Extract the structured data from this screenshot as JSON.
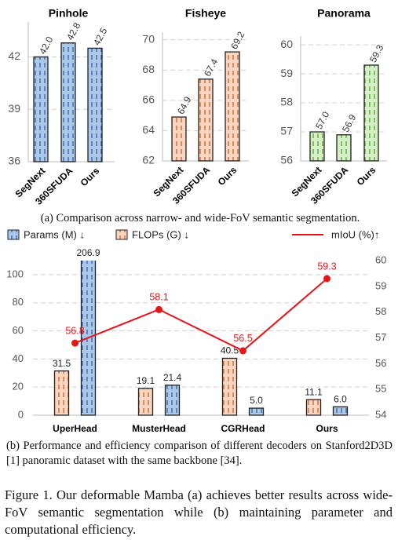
{
  "chart_data": [
    {
      "type": "bar",
      "title": "Pinhole",
      "categories": [
        "SegNext",
        "360SFUDA",
        "Ours"
      ],
      "values": [
        42.0,
        42.8,
        42.5
      ],
      "value_labels": [
        "42.0",
        "42.8",
        "42.5"
      ],
      "color": "#a9c8ea",
      "edge_color": "#2f5597",
      "ylim": [
        36,
        44
      ],
      "yticks": [
        36,
        39,
        42
      ],
      "grid": true
    },
    {
      "type": "bar",
      "title": "Fisheye",
      "categories": [
        "SegNext",
        "360SFUDA",
        "Ours"
      ],
      "values": [
        64.9,
        67.4,
        69.2
      ],
      "value_labels": [
        "64.9",
        "67.4",
        "69.2"
      ],
      "color": "#fbd5bf",
      "edge_color": "#c05a20",
      "ylim": [
        62,
        70.5
      ],
      "yticks": [
        62,
        64,
        66,
        68,
        70
      ],
      "grid": true
    },
    {
      "type": "bar",
      "title": "Panorama",
      "categories": [
        "SegNext",
        "360SFUDA",
        "Ours"
      ],
      "values": [
        57.0,
        56.9,
        59.3
      ],
      "value_labels": [
        "57.0",
        "56.9",
        "59.3"
      ],
      "color": "#d4f0c4",
      "edge_color": "#4f9a2a",
      "ylim": [
        56,
        60.3
      ],
      "yticks": [
        56,
        57,
        58,
        59,
        60
      ],
      "grid": true
    },
    {
      "type": "bar_line",
      "categories": [
        "UperHead",
        "MusterHead",
        "CGRHead",
        "Ours"
      ],
      "series": [
        {
          "name": "Params (M) ↓",
          "type": "bar",
          "color": "#a9c8ea",
          "edge_color": "#2f5597",
          "values": [
            206.9,
            21.4,
            5.0,
            6.0
          ],
          "value_labels": [
            "206.9",
            "21.4",
            "5.0",
            "6.0"
          ]
        },
        {
          "name": "FLOPs (G) ↓",
          "type": "bar",
          "color": "#fbd5bf",
          "edge_color": "#c05a20",
          "values": [
            31.5,
            19.1,
            40.5,
            11.1
          ]
        },
        {
          "name": "mIoU (%)↑",
          "type": "line",
          "color": "#e8141a",
          "axis": "y2",
          "values": [
            56.8,
            58.1,
            56.5,
            59.3
          ]
        }
      ],
      "ylim": [
        0,
        110
      ],
      "yticks": [
        0,
        20,
        40,
        60,
        80,
        100
      ],
      "y2lim": [
        54,
        60
      ],
      "y2ticks": [
        54,
        55,
        56,
        57,
        58,
        59,
        60
      ],
      "grid": true
    }
  ],
  "captions": {
    "a": "(a) Comparison across narrow- and wide-FoV semantic segmentation.",
    "b": "(b) Performance and efficiency comparison of different decoders on Stanford2D3D [1] panoramic dataset with the same backbone [34].",
    "figure": "Figure 1. Our deformable Mamba (a) achieves better results across wide-FoV semantic segmentation while (b) maintaining parameter and computational efficiency."
  }
}
